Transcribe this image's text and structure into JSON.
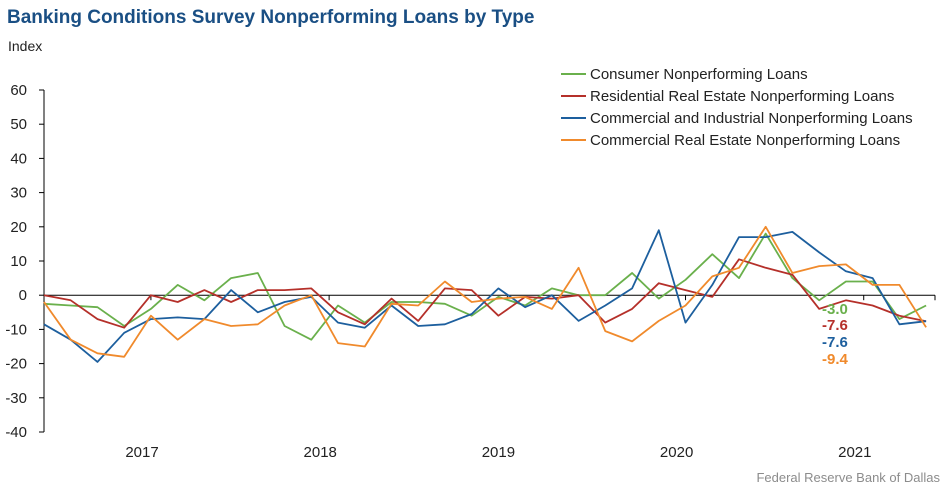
{
  "title": "Banking Conditions Survey Nonperforming Loans by Type",
  "subtitle": "Index",
  "source": "Federal Reserve Bank of Dallas",
  "chart_data": {
    "type": "line",
    "title": "Banking Conditions Survey Nonperforming Loans by Type",
    "ylabel": "Index",
    "ylim": [
      -40,
      60
    ],
    "yticks": [
      60,
      50,
      40,
      30,
      20,
      10,
      0,
      -10,
      -20,
      -30,
      -40
    ],
    "xlim": [
      0,
      50
    ],
    "xticks": [
      {
        "label": "2017",
        "x": 5
      },
      {
        "label": "2018",
        "x": 15
      },
      {
        "label": "2019",
        "x": 25
      },
      {
        "label": "2020",
        "x": 35
      },
      {
        "label": "2021",
        "x": 45
      }
    ],
    "x_note": "x is month index; 0 = Jul 2016, 50 = Sep 2020 end",
    "legend_position": "top-right",
    "series": [
      {
        "name": "Consumer Nonperforming Loans",
        "color": "#6ab04c",
        "end_label": "-3.0",
        "points": [
          [
            0,
            -2.5
          ],
          [
            1.5,
            -3
          ],
          [
            3,
            -3.5
          ],
          [
            4.5,
            -9
          ],
          [
            6,
            -4
          ],
          [
            7.5,
            3
          ],
          [
            9,
            -1.5
          ],
          [
            10.5,
            5
          ],
          [
            12,
            6.5
          ],
          [
            13.5,
            -9
          ],
          [
            15,
            -13
          ],
          [
            16.5,
            -3
          ],
          [
            18,
            -8
          ],
          [
            19.5,
            -2
          ],
          [
            21,
            -2
          ],
          [
            22.5,
            -2.5
          ],
          [
            24,
            -6
          ],
          [
            25.5,
            -0.5
          ],
          [
            27,
            -3
          ],
          [
            28.5,
            2
          ],
          [
            30,
            0
          ],
          [
            31.5,
            0
          ],
          [
            33,
            6.5
          ],
          [
            34.5,
            -1
          ],
          [
            36,
            4.5
          ],
          [
            37.5,
            12
          ],
          [
            39,
            5
          ],
          [
            40.5,
            18
          ],
          [
            42,
            5
          ],
          [
            43.5,
            -1.5
          ],
          [
            45,
            4
          ],
          [
            46.5,
            4
          ],
          [
            48,
            -7
          ],
          [
            49.5,
            -3
          ]
        ]
      },
      {
        "name": "Residential Real Estate Nonperforming Loans",
        "color": "#b5302a",
        "end_label": "-7.6",
        "points": [
          [
            0,
            0
          ],
          [
            1.5,
            -1.5
          ],
          [
            3,
            -7
          ],
          [
            4.5,
            -9.5
          ],
          [
            6,
            0
          ],
          [
            7.5,
            -2
          ],
          [
            9,
            1.5
          ],
          [
            10.5,
            -2
          ],
          [
            12,
            1.5
          ],
          [
            13.5,
            1.5
          ],
          [
            15,
            2
          ],
          [
            16.5,
            -5
          ],
          [
            18,
            -8.5
          ],
          [
            19.5,
            -1
          ],
          [
            21,
            -7.5
          ],
          [
            22.5,
            2
          ],
          [
            24,
            1.5
          ],
          [
            25.5,
            -6
          ],
          [
            27,
            -0.5
          ],
          [
            28.5,
            -1
          ],
          [
            30,
            0
          ],
          [
            31.5,
            -8
          ],
          [
            33,
            -4
          ],
          [
            34.5,
            3.5
          ],
          [
            36,
            1.5
          ],
          [
            37.5,
            -0.5
          ],
          [
            39,
            10.5
          ],
          [
            40.5,
            8
          ],
          [
            42,
            6
          ],
          [
            43.5,
            -4
          ],
          [
            45,
            -1.5
          ],
          [
            46.5,
            -3
          ],
          [
            48,
            -6
          ],
          [
            49.5,
            -7.6
          ]
        ]
      },
      {
        "name": "Commercial and Industrial Nonperforming Loans",
        "color": "#1d5f9e",
        "end_label": "-7.6",
        "points": [
          [
            0,
            -8.5
          ],
          [
            1.5,
            -13
          ],
          [
            3,
            -19.5
          ],
          [
            4.5,
            -11
          ],
          [
            6,
            -7
          ],
          [
            7.5,
            -6.5
          ],
          [
            9,
            -7
          ],
          [
            10.5,
            1.5
          ],
          [
            12,
            -5
          ],
          [
            13.5,
            -2
          ],
          [
            15,
            -0.5
          ],
          [
            16.5,
            -8
          ],
          [
            18,
            -9.5
          ],
          [
            19.5,
            -3
          ],
          [
            21,
            -9
          ],
          [
            22.5,
            -8.5
          ],
          [
            24,
            -5.5
          ],
          [
            25.5,
            2
          ],
          [
            27,
            -3.5
          ],
          [
            28.5,
            0
          ],
          [
            30,
            -7.5
          ],
          [
            31.5,
            -3
          ],
          [
            33,
            2
          ],
          [
            34.5,
            19
          ],
          [
            36,
            -8
          ],
          [
            37.5,
            3
          ],
          [
            39,
            17
          ],
          [
            40.5,
            17
          ],
          [
            42,
            18.5
          ],
          [
            43.5,
            12.5
          ],
          [
            45,
            7
          ],
          [
            46.5,
            5
          ],
          [
            48,
            -8.5
          ],
          [
            49.5,
            -7.6
          ]
        ]
      },
      {
        "name": "Commercial Real Estate Nonperforming Loans",
        "color": "#f08a2c",
        "end_label": "-9.4",
        "points": [
          [
            0,
            -2
          ],
          [
            1.5,
            -13
          ],
          [
            3,
            -17
          ],
          [
            4.5,
            -18
          ],
          [
            6,
            -6
          ],
          [
            7.5,
            -13
          ],
          [
            9,
            -7
          ],
          [
            10.5,
            -9
          ],
          [
            12,
            -8.5
          ],
          [
            13.5,
            -3
          ],
          [
            15,
            0
          ],
          [
            16.5,
            -14
          ],
          [
            18,
            -15
          ],
          [
            19.5,
            -2.5
          ],
          [
            21,
            -3
          ],
          [
            22.5,
            4
          ],
          [
            24,
            -2
          ],
          [
            25.5,
            -1
          ],
          [
            27,
            -0.5
          ],
          [
            28.5,
            -4
          ],
          [
            30,
            8
          ],
          [
            31.5,
            -10.5
          ],
          [
            33,
            -13.5
          ],
          [
            34.5,
            -7.5
          ],
          [
            36,
            -3
          ],
          [
            37.5,
            5.5
          ],
          [
            39,
            8
          ],
          [
            40.5,
            20
          ],
          [
            42,
            6.5
          ],
          [
            43.5,
            8.5
          ],
          [
            45,
            9
          ],
          [
            46.5,
            3
          ],
          [
            48,
            3
          ],
          [
            49.5,
            -9.4
          ]
        ]
      }
    ]
  }
}
